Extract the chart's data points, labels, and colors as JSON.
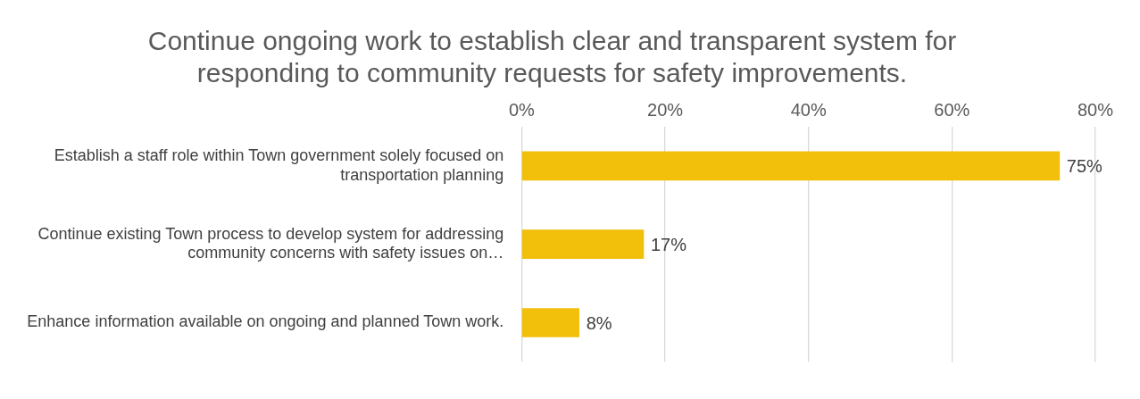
{
  "chart_data": {
    "type": "bar",
    "orientation": "horizontal",
    "title": "Continue ongoing work to establish clear and transparent system for responding to community requests for safety improvements.",
    "categories": [
      "Establish a staff role within Town government solely focused on transportation planning",
      "Continue existing Town process to develop system for addressing community concerns with safety issues on…",
      "Enhance information available on ongoing and planned Town work."
    ],
    "values": [
      75,
      17,
      8
    ],
    "value_labels": [
      "75%",
      "17%",
      "8%"
    ],
    "color": "#f2bf0a",
    "xlim": [
      0,
      80
    ],
    "xticks": [
      {
        "value": 0,
        "label": "0%"
      },
      {
        "value": 20,
        "label": "20%"
      },
      {
        "value": 40,
        "label": "40%"
      },
      {
        "value": 60,
        "label": "60%"
      },
      {
        "value": 80,
        "label": "80%"
      }
    ],
    "grid": "x",
    "legend": false
  }
}
